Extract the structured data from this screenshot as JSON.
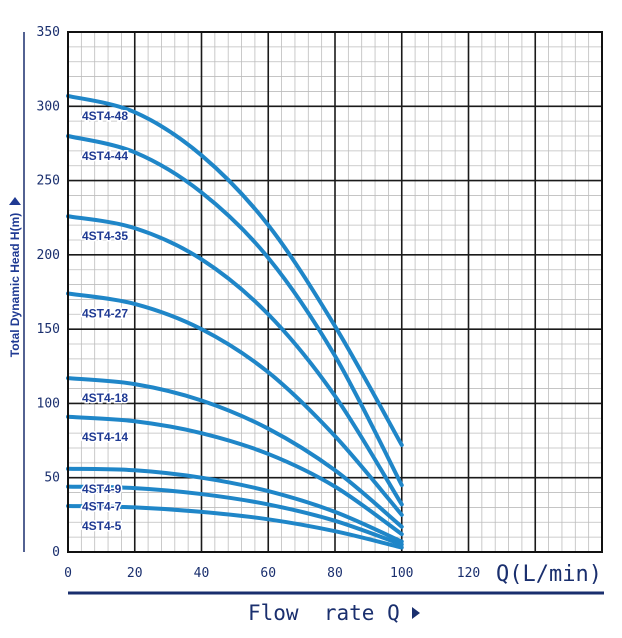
{
  "chart_data": {
    "type": "line",
    "title": "",
    "xlabel": "Flow  rate Q",
    "x_unit": "Q(L/min)",
    "ylabel": "Total Dynamic Head H(m)",
    "xlim": [
      0,
      160
    ],
    "ylim": [
      0,
      350
    ],
    "x_ticks": [
      "0",
      "20",
      "40",
      "60",
      "80",
      "100",
      "120"
    ],
    "y_ticks": [
      "0",
      "50",
      "100",
      "150",
      "200",
      "250",
      "300",
      "350"
    ],
    "grid": true,
    "line_color": "#1f86c8",
    "series": [
      {
        "name": "4ST4-48",
        "x": [
          0,
          20,
          40,
          60,
          80,
          100
        ],
        "y": [
          307,
          296,
          267,
          220,
          152,
          72
        ]
      },
      {
        "name": "4ST4-44",
        "x": [
          0,
          20,
          40,
          60,
          80,
          100
        ],
        "y": [
          280,
          269,
          242,
          198,
          132,
          45
        ]
      },
      {
        "name": "4ST4-35",
        "x": [
          0,
          20,
          40,
          60,
          80,
          100
        ],
        "y": [
          226,
          218,
          197,
          160,
          105,
          32
        ]
      },
      {
        "name": "4ST4-27",
        "x": [
          0,
          20,
          40,
          60,
          80,
          100
        ],
        "y": [
          174,
          167,
          150,
          121,
          78,
          25
        ]
      },
      {
        "name": "4ST4-18",
        "x": [
          0,
          20,
          40,
          60,
          80,
          100
        ],
        "y": [
          117,
          113,
          102,
          83,
          55,
          17
        ]
      },
      {
        "name": "4ST4-14",
        "x": [
          0,
          20,
          40,
          60,
          80,
          100
        ],
        "y": [
          91,
          88,
          80,
          66,
          44,
          12
        ]
      },
      {
        "name": "4ST4-9",
        "x": [
          0,
          20,
          40,
          60,
          80,
          100
        ],
        "y": [
          56,
          55,
          50,
          41,
          27,
          7
        ]
      },
      {
        "name": "4ST4-7",
        "x": [
          0,
          20,
          40,
          60,
          80,
          100
        ],
        "y": [
          44,
          43,
          39,
          32,
          21,
          5
        ]
      },
      {
        "name": "4ST4-5",
        "x": [
          0,
          20,
          40,
          60,
          80,
          100
        ],
        "y": [
          31,
          30,
          27,
          22,
          14,
          3
        ]
      }
    ]
  }
}
